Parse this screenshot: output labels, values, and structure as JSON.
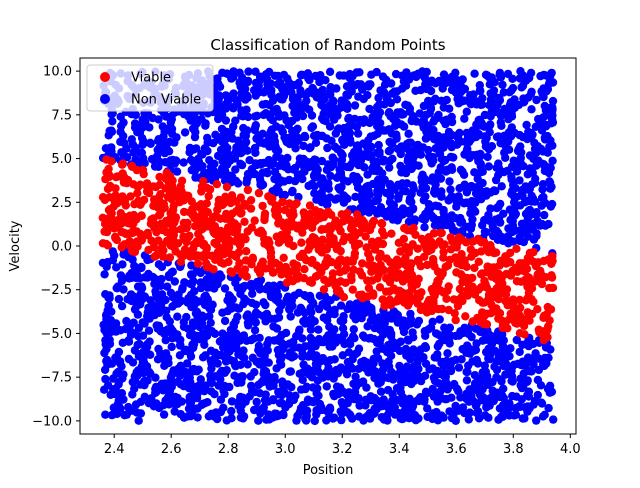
{
  "chart_data": {
    "type": "scatter",
    "title": "Classification of Random Points",
    "xlabel": "Position",
    "ylabel": "Velocity",
    "xlim": [
      2.28,
      4.02
    ],
    "ylim": [
      -10.75,
      10.75
    ],
    "x_ticks": [
      2.4,
      2.6,
      2.8,
      3.0,
      3.2,
      3.4,
      3.6,
      3.8,
      4.0
    ],
    "x_tick_labels": [
      "2.4",
      "2.6",
      "2.8",
      "3.0",
      "3.2",
      "3.4",
      "3.6",
      "3.8",
      "4.0"
    ],
    "y_ticks": [
      -10.0,
      -7.5,
      -5.0,
      -2.5,
      0.0,
      2.5,
      5.0,
      7.5,
      10.0
    ],
    "y_tick_labels": [
      "−10.0",
      "−7.5",
      "−5.0",
      "−2.5",
      "0.0",
      "2.5",
      "5.0",
      "7.5",
      "10.0"
    ],
    "grid": false,
    "legend_position": "top-left",
    "series": [
      {
        "name": "Viable",
        "color": "#ff0000"
      },
      {
        "name": "Non Viable",
        "color": "#0000ff"
      }
    ],
    "x_range": [
      2.36,
      3.94
    ],
    "y_range": [
      -10.0,
      10.0
    ],
    "viable_band": {
      "upper": [
        [
          2.36,
          5.0
        ],
        [
          3.94,
          -0.5
        ]
      ],
      "lower": [
        [
          2.36,
          0.0
        ],
        [
          3.94,
          -5.5
        ]
      ]
    }
  }
}
